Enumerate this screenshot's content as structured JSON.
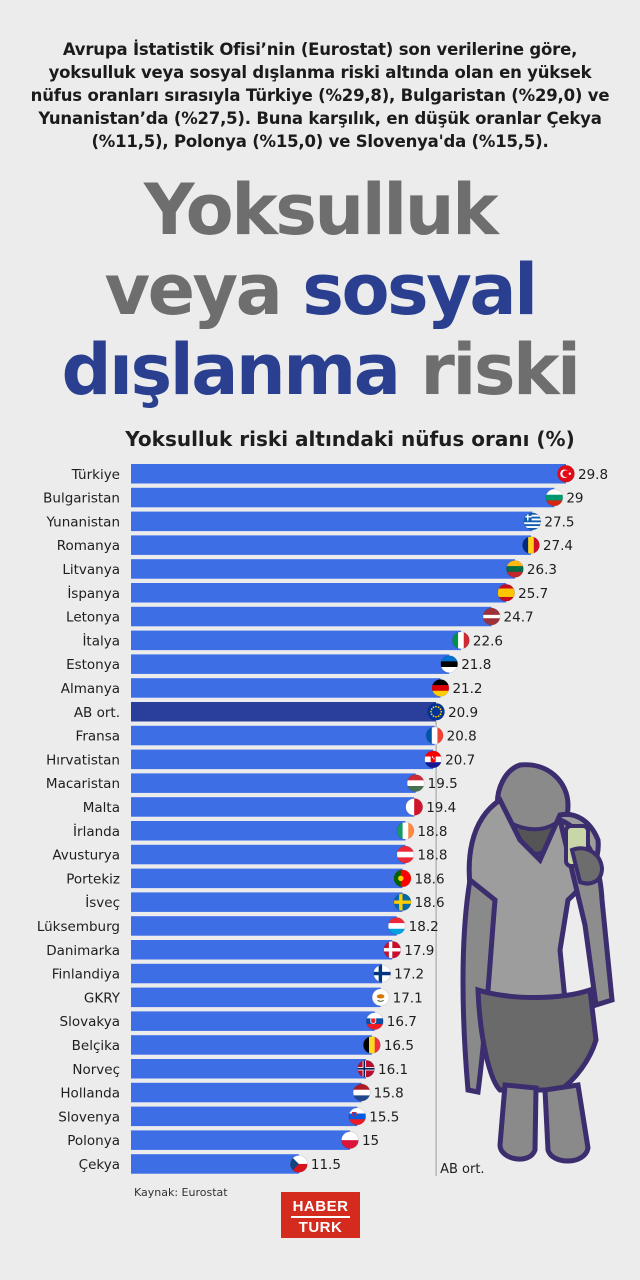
{
  "intro_text": "Avrupa İstatistik Ofisi’nin (Eurostat) son verilerine göre, yoksulluk veya sosyal dışlanma riski altında olan en yüksek nüfus oranları sırasıyla Türkiye (%29,8), Bulgaristan (%29,0) ve Yunanistan’da (%27,5). Buna karşılık, en düşük oranlar Çekya (%11,5), Polonya (%15,0) ve Slovenya'da (%15,5).",
  "headline": {
    "line1": "Yoksulluk",
    "line2a": "veya ",
    "line2b": "sosyal",
    "line3a": "dışlanma",
    "line3b": " riski"
  },
  "colors": {
    "bar": "#3d6ee6",
    "bar_highlight": "#2a3f9c",
    "title_grey": "#6e6e6e",
    "title_blue": "#2a3f8f",
    "logo_red": "#d52b1e"
  },
  "chart_data": {
    "type": "bar",
    "orientation": "horizontal",
    "title": "Yoksulluk riski altındaki nüfus oranı (%)",
    "categories": [
      "Türkiye",
      "Bulgaristan",
      "Yunanistan",
      "Romanya",
      "Litvanya",
      "İspanya",
      "Letonya",
      "İtalya",
      "Estonya",
      "Almanya",
      "AB ort.",
      "Fransa",
      "Hırvatistan",
      "Macaristan",
      "Malta",
      "İrlanda",
      "Avusturya",
      "Portekiz",
      "İsveç",
      "Lüksemburg",
      "Danimarka",
      "Finlandiya",
      "GKRY",
      "Slovakya",
      "Belçika",
      "Norveç",
      "Hollanda",
      "Slovenya",
      "Polonya",
      "Çekya"
    ],
    "values": [
      29.8,
      29,
      27.5,
      27.4,
      26.3,
      25.7,
      24.7,
      22.6,
      21.8,
      21.2,
      20.9,
      20.8,
      20.7,
      19.5,
      19.4,
      18.8,
      18.8,
      18.6,
      18.6,
      18.2,
      17.9,
      17.2,
      17.1,
      16.7,
      16.5,
      16.1,
      15.8,
      15.5,
      15,
      11.5
    ],
    "value_labels": [
      "29.8",
      "29",
      "27.5",
      "27.4",
      "26.3",
      "25.7",
      "24.7",
      "22.6",
      "21.8",
      "21.2",
      "20.9",
      "20.8",
      "20.7",
      "19.5",
      "19.4",
      "18.8",
      "18.8",
      "18.6",
      "18.6",
      "18.2",
      "17.9",
      "17.2",
      "17.1",
      "16.7",
      "16.5",
      "16.1",
      "15.8",
      "15.5",
      "15",
      "11.5"
    ],
    "flags": [
      "flag-turkey",
      "flag-bulgaria",
      "flag-greece",
      "flag-romania",
      "flag-lithuania",
      "flag-spain",
      "flag-latvia",
      "flag-italy",
      "flag-estonia",
      "flag-germany",
      "flag-eu",
      "flag-france",
      "flag-croatia",
      "flag-hungary",
      "flag-malta",
      "flag-ireland",
      "flag-austria",
      "flag-portugal",
      "flag-sweden",
      "flag-luxembourg",
      "flag-denmark",
      "flag-finland",
      "flag-cyprus",
      "flag-slovakia",
      "flag-belgium",
      "flag-norway",
      "flag-netherlands",
      "flag-slovenia",
      "flag-poland",
      "flag-czechia"
    ],
    "highlight": "AB ort.",
    "reference_line": {
      "value": 20.9,
      "label": "AB ort."
    },
    "xlim": [
      0,
      29.8
    ],
    "grid": false
  },
  "source": "Kaynak: Eurostat",
  "logo": {
    "top": "HABER",
    "bottom": "TURK"
  }
}
